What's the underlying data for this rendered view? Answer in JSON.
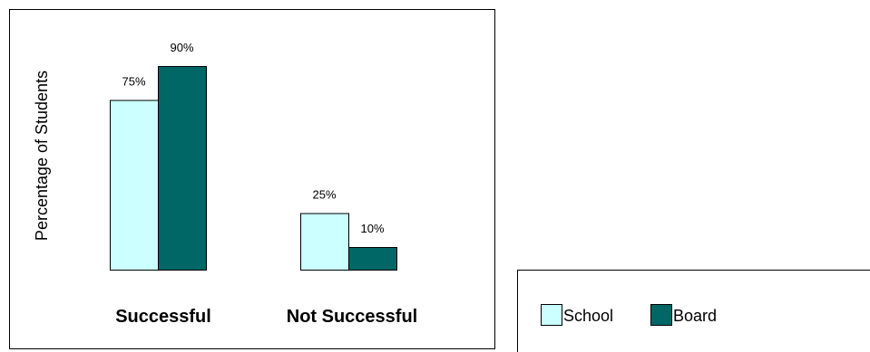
{
  "chart_data": {
    "type": "bar",
    "title": "",
    "xlabel": "",
    "ylabel": "Percentage of Students",
    "categories": [
      "Successful",
      "Not Successful"
    ],
    "series": [
      {
        "name": "School",
        "values": [
          75,
          25
        ],
        "labels": [
          "75%",
          "25%"
        ],
        "color": "#ccffff"
      },
      {
        "name": "Board",
        "values": [
          90,
          10
        ],
        "labels": [
          "90%",
          "10%"
        ],
        "color": "#006666"
      }
    ],
    "ylim": [
      0,
      100
    ],
    "grid": false,
    "legend_position": "bottom-right"
  }
}
